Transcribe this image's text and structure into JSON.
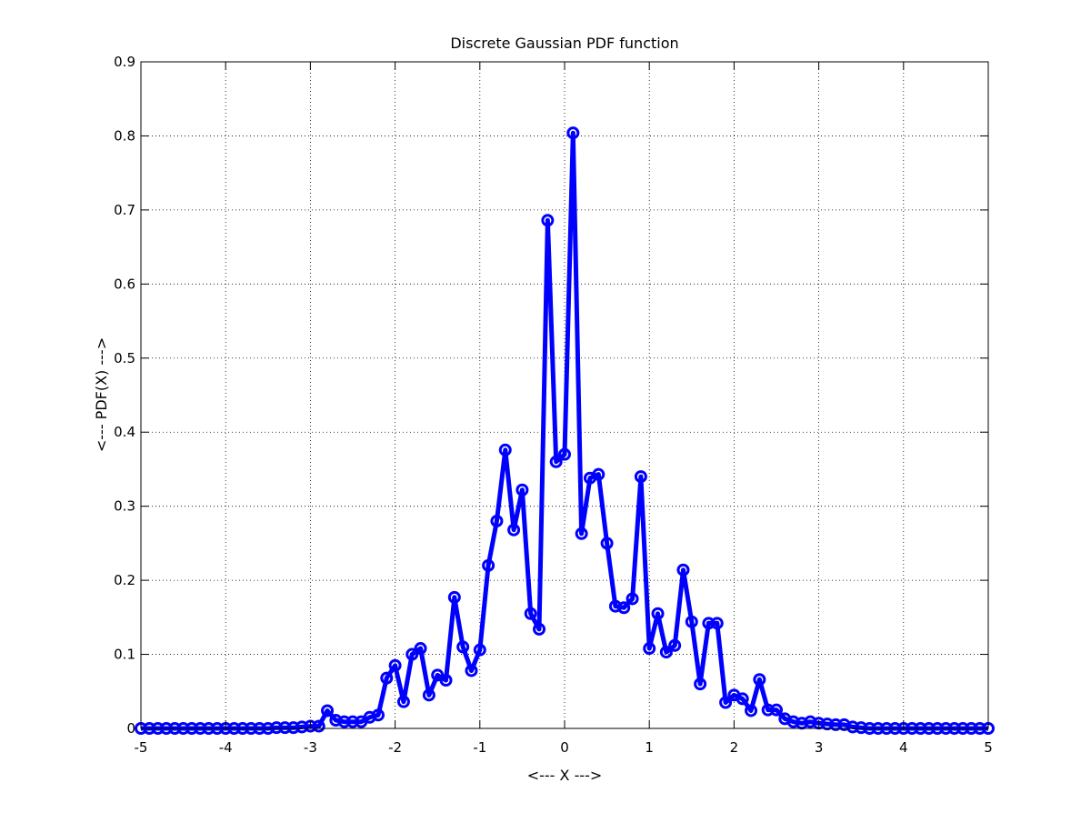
{
  "chart_data": {
    "type": "line",
    "title": "Discrete Gaussian PDF function",
    "xlabel": "<--- X --->",
    "ylabel": "<--- PDF(X) --->",
    "xlim": [
      -5,
      5
    ],
    "ylim": [
      0,
      0.9
    ],
    "xticks": [
      -5,
      -4,
      -3,
      -2,
      -1,
      0,
      1,
      2,
      3,
      4,
      5
    ],
    "xtick_labels": [
      "-5",
      "-4",
      "-3",
      "-2",
      "-1",
      "0",
      "1",
      "2",
      "3",
      "4",
      "5"
    ],
    "yticks": [
      0,
      0.1,
      0.2,
      0.3,
      0.4,
      0.5,
      0.6,
      0.7,
      0.8,
      0.9
    ],
    "ytick_labels": [
      "0",
      "0.1",
      "0.2",
      "0.3",
      "0.4",
      "0.5",
      "0.6",
      "0.7",
      "0.8",
      "0.9"
    ],
    "grid": true,
    "marker": "circle",
    "series": [
      {
        "color": "#0000ff",
        "x": [
          -5,
          -4.9,
          -4.8,
          -4.7,
          -4.6,
          -4.5,
          -4.4,
          -4.3,
          -4.2,
          -4.1,
          -4,
          -3.9,
          -3.8,
          -3.7,
          -3.6,
          -3.5,
          -3.4,
          -3.3,
          -3.2,
          -3.1,
          -3,
          -2.9,
          -2.8,
          -2.7,
          -2.6,
          -2.5,
          -2.4,
          -2.3,
          -2.2,
          -2.1,
          -2,
          -1.9,
          -1.8,
          -1.7,
          -1.6,
          -1.5,
          -1.4,
          -1.3,
          -1.2,
          -1.1,
          -1,
          -0.9,
          -0.8,
          -0.7,
          -0.6,
          -0.5,
          -0.4,
          -0.3,
          -0.2,
          -0.1,
          0,
          0.1,
          0.2,
          0.3,
          0.4,
          0.5,
          0.6,
          0.7,
          0.8,
          0.9,
          1,
          1.1,
          1.2,
          1.3,
          1.4,
          1.5,
          1.6,
          1.7,
          1.8,
          1.9,
          2,
          2.1,
          2.2,
          2.3,
          2.4,
          2.5,
          2.6,
          2.7,
          2.8,
          2.9,
          3,
          3.1,
          3.2,
          3.3,
          3.4,
          3.5,
          3.6,
          3.7,
          3.8,
          3.9,
          4,
          4.1,
          4.2,
          4.3,
          4.4,
          4.5,
          4.6,
          4.7,
          4.8,
          4.9,
          5
        ],
        "y": [
          0,
          0,
          0,
          0,
          0,
          0,
          0,
          0,
          0,
          0,
          0,
          0,
          0,
          0,
          0,
          0,
          0.001,
          0.001,
          0.001,
          0.002,
          0.003,
          0.003,
          0.024,
          0.011,
          0.009,
          0.009,
          0.009,
          0.015,
          0.018,
          0.068,
          0.085,
          0.036,
          0.1,
          0.108,
          0.045,
          0.072,
          0.065,
          0.177,
          0.11,
          0.078,
          0.106,
          0.22,
          0.28,
          0.376,
          0.268,
          0.322,
          0.155,
          0.134,
          0.686,
          0.36,
          0.37,
          0.804,
          0.263,
          0.338,
          0.343,
          0.25,
          0.165,
          0.163,
          0.175,
          0.34,
          0.108,
          0.155,
          0.103,
          0.112,
          0.214,
          0.144,
          0.06,
          0.142,
          0.142,
          0.035,
          0.045,
          0.04,
          0.024,
          0.066,
          0.025,
          0.025,
          0.013,
          0.009,
          0.007,
          0.009,
          0.007,
          0.006,
          0.005,
          0.005,
          0.002,
          0.001,
          0,
          0,
          0,
          0,
          0,
          0,
          0,
          0,
          0,
          0,
          0,
          0,
          0,
          0,
          0
        ]
      }
    ]
  }
}
